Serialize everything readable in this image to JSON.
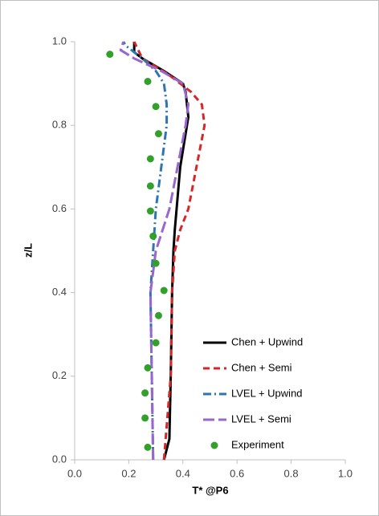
{
  "chart_data": {
    "type": "line",
    "xlabel": "T* @P6",
    "ylabel": "z/L",
    "xlim": [
      0,
      1
    ],
    "ylim": [
      0,
      1
    ],
    "xticks": [
      {
        "value": 0,
        "label": "0.0"
      },
      {
        "value": 0.2,
        "label": "0.2"
      },
      {
        "value": 0.4,
        "label": "0.4"
      },
      {
        "value": 0.6,
        "label": "0.6"
      },
      {
        "value": 0.8,
        "label": "0.8"
      },
      {
        "value": 1,
        "label": "1.0"
      }
    ],
    "yticks": [
      {
        "value": 0,
        "label": "0.0"
      },
      {
        "value": 0.2,
        "label": "0.2"
      },
      {
        "value": 0.4,
        "label": "0.4"
      },
      {
        "value": 0.6,
        "label": "0.6"
      },
      {
        "value": 0.8,
        "label": "0.8"
      },
      {
        "value": 1,
        "label": "1.0"
      }
    ],
    "legend": "lower right",
    "series": [
      {
        "name": "Chen + Upwind",
        "color": "#000000",
        "line": "solid",
        "marker": "none",
        "x": [
          0.33,
          0.35,
          0.355,
          0.36,
          0.365,
          0.37,
          0.39,
          0.42,
          0.41,
          0.4,
          0.33,
          0.25,
          0.22,
          0.22
        ],
        "values": [
          0,
          0.05,
          0.2,
          0.4,
          0.5,
          0.55,
          0.7,
          0.82,
          0.88,
          0.9,
          0.93,
          0.96,
          0.975,
          1.0
        ]
      },
      {
        "name": "Chen + Semi",
        "color": "#d62728",
        "line": "dashed",
        "marker": "none",
        "x": [
          0.33,
          0.355,
          0.36,
          0.37,
          0.39,
          0.42,
          0.45,
          0.48,
          0.47,
          0.43,
          0.35,
          0.25,
          0.22
        ],
        "values": [
          0,
          0.2,
          0.4,
          0.5,
          0.55,
          0.6,
          0.7,
          0.8,
          0.85,
          0.88,
          0.92,
          0.96,
          1.0
        ]
      },
      {
        "name": "LVEL + Upwind",
        "color": "#2e75b6",
        "line": "dashdot",
        "marker": "none",
        "x": [
          0.29,
          0.285,
          0.28,
          0.3,
          0.32,
          0.34,
          0.34,
          0.33,
          0.3,
          0.25,
          0.19,
          0.18
        ],
        "values": [
          0,
          0.2,
          0.4,
          0.6,
          0.7,
          0.8,
          0.85,
          0.9,
          0.93,
          0.96,
          0.99,
          1.0
        ]
      },
      {
        "name": "LVEL + Semi",
        "color": "#9966cc",
        "line": "longdash",
        "marker": "none",
        "x": [
          0.29,
          0.285,
          0.28,
          0.3,
          0.35,
          0.38,
          0.41,
          0.42,
          0.4,
          0.32,
          0.22,
          0.17,
          0.18
        ],
        "values": [
          0,
          0.2,
          0.4,
          0.5,
          0.6,
          0.7,
          0.8,
          0.85,
          0.9,
          0.93,
          0.96,
          0.98,
          1.0
        ]
      },
      {
        "name": "Experiment",
        "color": "#33a02c",
        "line": "none",
        "marker": "circle",
        "x": [
          0.13,
          0.27,
          0.3,
          0.31,
          0.28,
          0.28,
          0.28,
          0.29,
          0.3,
          0.33,
          0.31,
          0.3,
          0.27,
          0.26,
          0.26,
          0.27
        ],
        "values": [
          0.97,
          0.905,
          0.845,
          0.78,
          0.72,
          0.655,
          0.595,
          0.535,
          0.47,
          0.405,
          0.345,
          0.28,
          0.22,
          0.16,
          0.1,
          0.03
        ]
      }
    ]
  }
}
